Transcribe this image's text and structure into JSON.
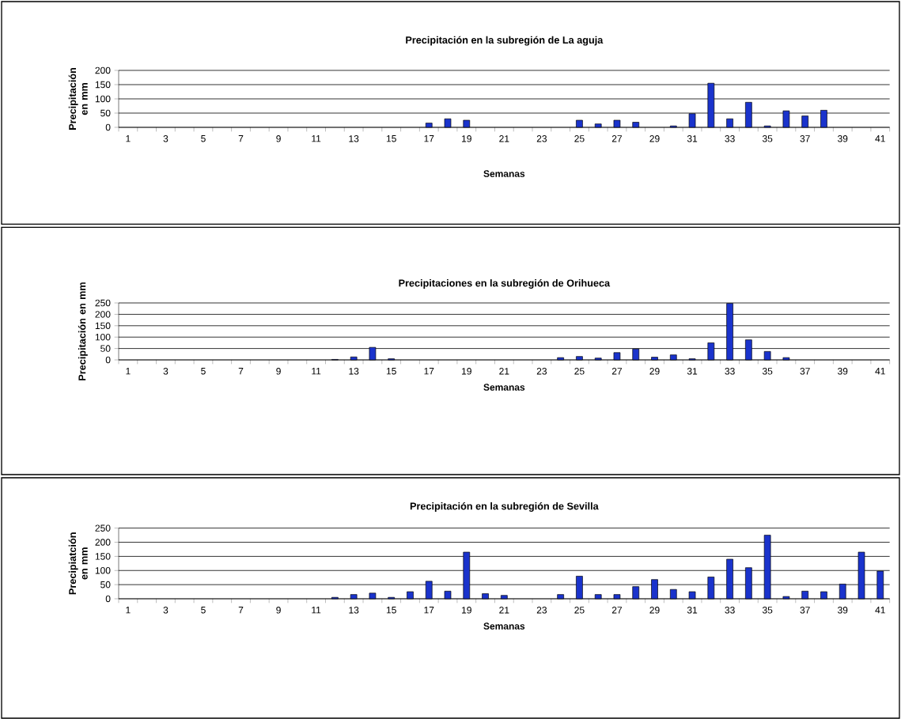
{
  "chart_data": [
    {
      "type": "bar",
      "title": "Precipitación en la subregión de La aguja",
      "xlabel": "Semanas",
      "ylabel": "Precipitación en mm",
      "categories": [
        "1",
        null,
        "3",
        null,
        "5",
        null,
        "7",
        null,
        "9",
        null,
        "11",
        null,
        "13",
        null,
        "15",
        null,
        "17",
        null,
        "19",
        null,
        "21",
        null,
        "23",
        null,
        "25",
        null,
        "27",
        null,
        "29",
        null,
        "31",
        null,
        "33",
        null,
        "35",
        null,
        "37",
        null,
        "39",
        null,
        "41"
      ],
      "values": [
        null,
        null,
        null,
        null,
        null,
        null,
        null,
        null,
        null,
        null,
        null,
        null,
        null,
        null,
        null,
        null,
        15,
        30,
        25,
        null,
        null,
        null,
        null,
        null,
        25,
        12,
        25,
        18,
        null,
        5,
        48,
        155,
        30,
        88,
        5,
        58,
        40,
        60,
        null,
        null,
        null
      ],
      "color": "#1a33cc",
      "ylim": [
        0,
        200
      ],
      "yticks": [
        0,
        50,
        100,
        150,
        200
      ],
      "grid": "y"
    },
    {
      "type": "bar",
      "title": "Precipitaciones en la subregión de Orihueca",
      "xlabel": "Semanas",
      "ylabel": "Precipitación en mm",
      "categories": [
        "1",
        null,
        "3",
        null,
        "5",
        null,
        "7",
        null,
        "9",
        null,
        "11",
        null,
        "13",
        null,
        "15",
        null,
        "17",
        null,
        "19",
        null,
        "21",
        null,
        "23",
        null,
        "25",
        null,
        "27",
        null,
        "29",
        null,
        "31",
        null,
        "33",
        null,
        "35",
        null,
        "37",
        null,
        "39",
        null,
        "41"
      ],
      "values": [
        null,
        null,
        null,
        null,
        null,
        null,
        null,
        null,
        null,
        null,
        null,
        2,
        13,
        55,
        5,
        null,
        null,
        null,
        null,
        null,
        null,
        null,
        null,
        10,
        15,
        8,
        32,
        48,
        12,
        22,
        5,
        75,
        248,
        88,
        37,
        10,
        null,
        null,
        null,
        null,
        null
      ],
      "color": "#1a33cc",
      "ylim": [
        0,
        250
      ],
      "yticks": [
        0,
        50,
        100,
        150,
        200,
        250
      ],
      "grid": "y"
    },
    {
      "type": "bar",
      "title": "Precipitación en la subregión de Sevilla",
      "xlabel": "Semanas",
      "ylabel": "Precipiatción en mm",
      "categories": [
        "1",
        null,
        "3",
        null,
        "5",
        null,
        "7",
        null,
        "9",
        null,
        "11",
        null,
        "13",
        null,
        "15",
        null,
        "17",
        null,
        "19",
        null,
        "21",
        null,
        "23",
        null,
        "25",
        null,
        "27",
        null,
        "29",
        null,
        "31",
        null,
        "33",
        null,
        "35",
        null,
        "37",
        null,
        "39",
        null,
        "41"
      ],
      "values": [
        null,
        null,
        null,
        null,
        null,
        null,
        null,
        null,
        null,
        null,
        null,
        5,
        15,
        20,
        5,
        25,
        62,
        27,
        165,
        18,
        12,
        null,
        null,
        15,
        80,
        15,
        15,
        43,
        68,
        33,
        25,
        77,
        140,
        110,
        225,
        8,
        27,
        25,
        52,
        165,
        98
      ],
      "color": "#1a33cc",
      "ylim": [
        0,
        250
      ],
      "yticks": [
        0,
        50,
        100,
        150,
        200,
        250
      ],
      "grid": "y"
    }
  ]
}
